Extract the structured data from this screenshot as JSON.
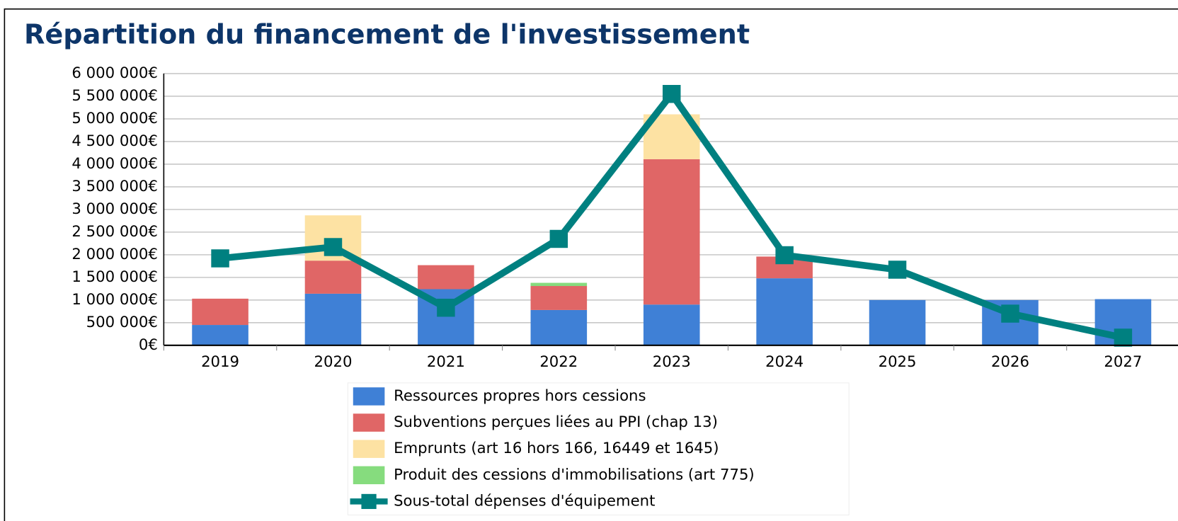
{
  "chart_data": {
    "type": "bar",
    "title": "Répartition du financement de l'investissement",
    "categories": [
      "2019",
      "2020",
      "2021",
      "2022",
      "2023",
      "2024",
      "2025",
      "2026",
      "2027"
    ],
    "series": [
      {
        "name": "Ressources propres hors cessions",
        "color": "#3f80d6",
        "values": [
          450000,
          1140000,
          1240000,
          780000,
          900000,
          1480000,
          1000000,
          1000000,
          1020000
        ]
      },
      {
        "name": "Subventions perçues liées au PPI (chap 13)",
        "color": "#e06666",
        "values": [
          580000,
          730000,
          530000,
          530000,
          3210000,
          480000,
          null,
          null,
          null
        ]
      },
      {
        "name": "Emprunts (art 16 hors 166, 16449 et 1645)",
        "color": "#fde2a3",
        "values": [
          null,
          1000000,
          null,
          null,
          990000,
          null,
          null,
          null,
          null
        ]
      },
      {
        "name": "Produit des cessions d'immobilisations (art 775)",
        "color": "#86dc7e",
        "values": [
          null,
          null,
          null,
          70000,
          null,
          null,
          null,
          null,
          null
        ]
      },
      {
        "name": "Sous-total dépenses d'équipement",
        "color": "#008080",
        "type": "line",
        "values": [
          1920000,
          2170000,
          830000,
          2350000,
          5550000,
          1990000,
          1670000,
          700000,
          170000
        ]
      }
    ],
    "ylim": [
      0,
      6000000
    ],
    "yticks": [
      {
        "value": 0,
        "label": "0€"
      },
      {
        "value": 500000,
        "label": "500 000€"
      },
      {
        "value": 1000000,
        "label": "1 000 000€"
      },
      {
        "value": 1500000,
        "label": "1 500 000€"
      },
      {
        "value": 2000000,
        "label": "2 000 000€"
      },
      {
        "value": 2500000,
        "label": "2 500 000€"
      },
      {
        "value": 3000000,
        "label": "3 000 000€"
      },
      {
        "value": 3500000,
        "label": "3 500 000€"
      },
      {
        "value": 4000000,
        "label": "4 000 000€"
      },
      {
        "value": 4500000,
        "label": "4 500 000€"
      },
      {
        "value": 5000000,
        "label": "5 000 000€"
      },
      {
        "value": 5500000,
        "label": "5 500 000€"
      },
      {
        "value": 6000000,
        "label": "6 000 000€"
      }
    ],
    "grid": true,
    "legend": "bottom"
  }
}
